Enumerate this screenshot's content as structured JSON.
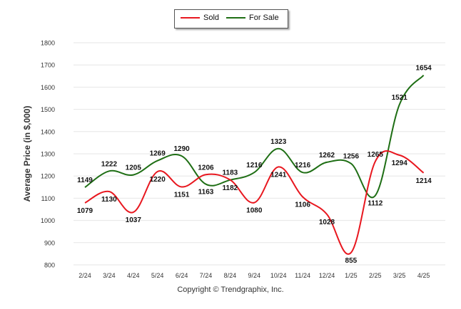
{
  "chart_data": {
    "type": "line",
    "x": [
      "2/24",
      "3/24",
      "4/24",
      "5/24",
      "6/24",
      "7/24",
      "8/24",
      "9/24",
      "10/24",
      "11/24",
      "12/24",
      "1/25",
      "2/25",
      "3/25",
      "4/25"
    ],
    "series": [
      {
        "name": "Sold",
        "color": "#e8171f",
        "values": [
          1079,
          1130,
          1037,
          1220,
          1151,
          1206,
          1183,
          1080,
          1241,
          1106,
          1028,
          855,
          1265,
          1294,
          1214
        ]
      },
      {
        "name": "For Sale",
        "color": "#1e6e14",
        "values": [
          1149,
          1222,
          1205,
          1269,
          1290,
          1163,
          1182,
          1216,
          1323,
          1216,
          1262,
          1256,
          1112,
          1521,
          1654
        ]
      }
    ],
    "ylabel": "Average Price (in $,000)",
    "xlabel": "",
    "ylim": [
      800,
      1800
    ],
    "yticks": [
      800,
      900,
      1000,
      1100,
      1200,
      1300,
      1400,
      1500,
      1600,
      1700,
      1800
    ],
    "grid": true,
    "legend_position": "top-center"
  },
  "legend": {
    "sold": "Sold",
    "for_sale": "For Sale"
  },
  "footer": "Copyright © Trendgraphix, Inc."
}
